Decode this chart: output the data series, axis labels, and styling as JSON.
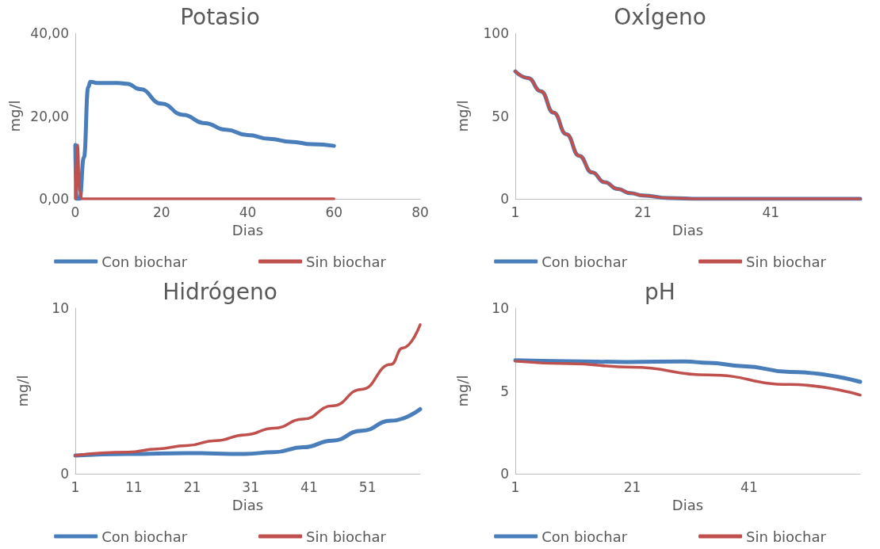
{
  "chart_data": [
    {
      "type": "line",
      "title": "Potasio",
      "xlabel": "Dias",
      "ylabel": "mg/l",
      "xlim": [
        0,
        80
      ],
      "xticks": [
        0,
        20,
        40,
        60,
        80
      ],
      "ylim": [
        0,
        40
      ],
      "yticks": [
        {
          "value": 0,
          "label": "0,00"
        },
        {
          "value": 20,
          "label": "20,00"
        },
        {
          "value": 40,
          "label": "40,00"
        }
      ],
      "grid": false,
      "legend": "bottom",
      "series": [
        {
          "name": "Con biochar",
          "color": "#4a7ebb",
          "x": [
            0,
            0.3,
            1,
            2,
            3,
            3.5,
            5,
            10,
            12,
            15,
            20,
            25,
            30,
            35,
            40,
            45,
            50,
            55,
            60
          ],
          "values": [
            13,
            0,
            0,
            10,
            27,
            28.3,
            28,
            28,
            27.8,
            26.5,
            23,
            20.3,
            18.3,
            16.7,
            15.4,
            14.5,
            13.8,
            13.2,
            12.8
          ]
        },
        {
          "name": "Sin biochar",
          "color": "#c0504d",
          "x": [
            0,
            0.5,
            1,
            1.5,
            60
          ],
          "values": [
            0,
            13,
            2,
            0,
            0
          ]
        }
      ]
    },
    {
      "type": "line",
      "title": "OxÍgeno",
      "xlabel": "Dias",
      "ylabel": "mg/l",
      "xlim": [
        1,
        55
      ],
      "xticks": [
        1,
        21,
        41
      ],
      "ylim": [
        0,
        100
      ],
      "yticks": [
        0,
        50,
        100
      ],
      "grid": false,
      "legend": "bottom",
      "series": [
        {
          "name": "Con biochar",
          "color": "#4a7ebb",
          "x": [
            1,
            3,
            5,
            7,
            9,
            11,
            13,
            15,
            17,
            19,
            21,
            25,
            30,
            40,
            55
          ],
          "values": [
            77,
            73,
            65,
            52,
            39,
            26,
            16,
            10,
            6,
            3.5,
            2,
            0.5,
            0,
            0,
            0
          ]
        },
        {
          "name": "Sin biochar",
          "color": "#c0504d",
          "x": [
            1,
            3,
            5,
            7,
            9,
            11,
            13,
            15,
            17,
            19,
            21,
            25,
            30,
            40,
            55
          ],
          "values": [
            77,
            73,
            65,
            52,
            39,
            26,
            16,
            10,
            6,
            3.5,
            2,
            0.5,
            0,
            0,
            0
          ]
        }
      ]
    },
    {
      "type": "line",
      "title": "Hidrógeno",
      "xlabel": "Dias",
      "ylabel": "mg/l",
      "xlim": [
        1,
        60
      ],
      "xticks": [
        1,
        11,
        21,
        31,
        41,
        51
      ],
      "ylim": [
        0,
        10
      ],
      "yticks": [
        0,
        10
      ],
      "grid": false,
      "legend": "bottom",
      "series": [
        {
          "name": "Con biochar",
          "color": "#4a7ebb",
          "x": [
            1,
            10,
            20,
            30,
            35,
            40,
            45,
            50,
            55,
            60
          ],
          "values": [
            1.1,
            1.2,
            1.25,
            1.2,
            1.3,
            1.6,
            2.0,
            2.6,
            3.2,
            3.9
          ]
        },
        {
          "name": "Sin biochar",
          "color": "#c0504d",
          "x": [
            1,
            10,
            15,
            20,
            25,
            30,
            35,
            40,
            45,
            50,
            55,
            57,
            60
          ],
          "values": [
            1.1,
            1.3,
            1.5,
            1.7,
            2.0,
            2.35,
            2.75,
            3.3,
            4.1,
            5.1,
            6.6,
            7.6,
            9.0
          ]
        }
      ]
    },
    {
      "type": "line",
      "title": "pH",
      "xlabel": "Dias",
      "ylabel": "mg/l",
      "xlim": [
        1,
        60
      ],
      "xticks": [
        1,
        21,
        41
      ],
      "ylim": [
        0,
        10
      ],
      "yticks": [
        0,
        5,
        10
      ],
      "grid": false,
      "legend": "bottom",
      "series": [
        {
          "name": "Con biochar",
          "color": "#4a7ebb",
          "x": [
            1,
            10,
            20,
            30,
            34,
            40,
            48,
            60
          ],
          "values": [
            6.85,
            6.8,
            6.75,
            6.78,
            6.7,
            6.5,
            6.15,
            5.55
          ]
        },
        {
          "name": "Sin biochar",
          "color": "#c0504d",
          "x": [
            1,
            10,
            21,
            34,
            48,
            60
          ],
          "values": [
            6.8,
            6.65,
            6.43,
            5.97,
            5.39,
            4.75
          ]
        }
      ]
    }
  ]
}
